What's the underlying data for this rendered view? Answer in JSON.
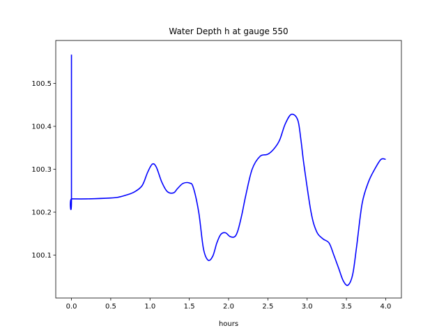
{
  "chart_data": {
    "type": "line",
    "title": "Water Depth h at gauge 550",
    "xlabel": "hours",
    "ylabel": "",
    "xlim": [
      -0.2,
      4.2
    ],
    "ylim": [
      100.0,
      100.6
    ],
    "xticks": [
      0.0,
      0.5,
      1.0,
      1.5,
      2.0,
      2.5,
      3.0,
      3.5,
      4.0
    ],
    "xtick_labels": [
      "0.0",
      "0.5",
      "1.0",
      "1.5",
      "2.0",
      "2.5",
      "3.0",
      "3.5",
      "4.0"
    ],
    "yticks": [
      100.1,
      100.2,
      100.3,
      100.4,
      100.5
    ],
    "ytick_labels": [
      "100.1",
      "100.2",
      "100.3",
      "100.4",
      "100.5"
    ],
    "grid": false,
    "series": [
      {
        "color": "#0000ff",
        "x": [
          0.0,
          0.0,
          0.001,
          0.2,
          0.5,
          0.6,
          0.7,
          0.8,
          0.9,
          0.97,
          1.03,
          1.08,
          1.15,
          1.22,
          1.3,
          1.35,
          1.42,
          1.5,
          1.55,
          1.62,
          1.68,
          1.74,
          1.8,
          1.85,
          1.9,
          1.96,
          2.02,
          2.08,
          2.12,
          2.17,
          2.22,
          2.3,
          2.4,
          2.5,
          2.58,
          2.65,
          2.72,
          2.8,
          2.88,
          2.92,
          2.96,
          3.05,
          3.12,
          3.2,
          3.28,
          3.34,
          3.4,
          3.46,
          3.52,
          3.58,
          3.63,
          3.7,
          3.78,
          3.86,
          3.94,
          4.0
        ],
        "y": [
          100.567,
          100.231,
          100.231,
          100.231,
          100.233,
          100.235,
          100.24,
          100.247,
          100.262,
          100.293,
          100.312,
          100.305,
          100.27,
          100.248,
          100.245,
          100.255,
          100.267,
          100.268,
          100.258,
          100.2,
          100.115,
          100.088,
          100.098,
          100.128,
          100.148,
          100.152,
          100.143,
          100.143,
          100.158,
          100.195,
          100.24,
          100.3,
          100.33,
          100.335,
          100.348,
          100.368,
          100.405,
          100.428,
          100.415,
          100.37,
          100.31,
          100.2,
          100.155,
          100.138,
          100.128,
          100.1,
          100.07,
          100.04,
          100.03,
          100.055,
          100.12,
          100.22,
          100.27,
          100.3,
          100.323,
          100.323
        ]
      }
    ]
  }
}
